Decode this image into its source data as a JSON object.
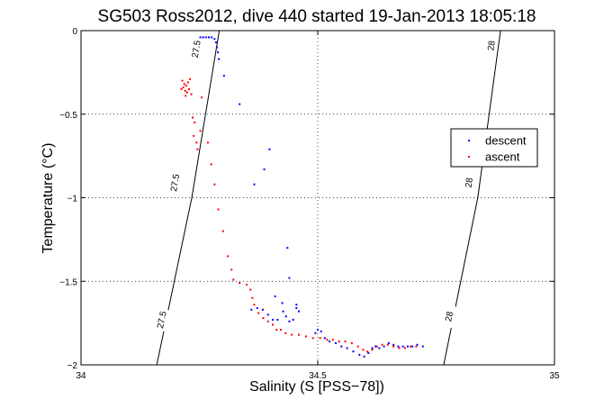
{
  "chart_data": {
    "type": "scatter",
    "title": "SG503 Ross2012, dive 440 started 19-Jan-2013 18:05:18",
    "xlabel": "Salinity (S [PSS−78])",
    "ylabel": "Temperature (°C)",
    "xlim": [
      34,
      35
    ],
    "ylim": [
      -2,
      0
    ],
    "x_ticks": [
      34,
      34.5,
      35
    ],
    "x_tick_labels": [
      "34",
      "34.5",
      "35"
    ],
    "y_ticks": [
      0,
      -0.5,
      -1,
      -1.5,
      -2
    ],
    "y_tick_labels": [
      "0",
      "−0.5",
      "−1",
      "−1.5",
      "−2"
    ],
    "grid": true,
    "legend_position": "right",
    "density_contours": [
      {
        "label": "27.5",
        "points": [
          [
            34.16,
            -2.0
          ],
          [
            34.234,
            -1.0
          ],
          [
            34.292,
            0.0
          ]
        ],
        "label_positions": [
          [
            34.17,
            -1.73
          ],
          [
            34.198,
            -0.91
          ],
          [
            34.243,
            -0.11
          ]
        ]
      },
      {
        "label": "28",
        "points": [
          [
            34.766,
            -2.0
          ],
          [
            34.838,
            -1.0
          ],
          [
            34.886,
            0.0
          ]
        ],
        "label_positions": [
          [
            34.777,
            -1.71
          ],
          [
            34.819,
            -0.91
          ],
          [
            34.866,
            -0.09
          ]
        ]
      }
    ],
    "series": [
      {
        "name": "descent",
        "color": "#0000ff",
        "points": [
          [
            34.252,
            -0.04
          ],
          [
            34.258,
            -0.04
          ],
          [
            34.264,
            -0.04
          ],
          [
            34.27,
            -0.04
          ],
          [
            34.276,
            -0.04
          ],
          [
            34.282,
            -0.05
          ],
          [
            34.285,
            -0.07
          ],
          [
            34.287,
            -0.1
          ],
          [
            34.289,
            -0.13
          ],
          [
            34.291,
            -0.17
          ],
          [
            34.302,
            -0.27
          ],
          [
            34.335,
            -0.44
          ],
          [
            34.366,
            -0.92
          ],
          [
            34.387,
            -0.83
          ],
          [
            34.398,
            -0.71
          ],
          [
            34.436,
            -1.3
          ],
          [
            34.44,
            -1.48
          ],
          [
            34.41,
            -1.59
          ],
          [
            34.425,
            -1.63
          ],
          [
            34.455,
            -1.64
          ],
          [
            34.36,
            -1.67
          ],
          [
            34.372,
            -1.66
          ],
          [
            34.384,
            -1.67
          ],
          [
            34.395,
            -1.7
          ],
          [
            34.405,
            -1.73
          ],
          [
            34.415,
            -1.73
          ],
          [
            34.427,
            -1.68
          ],
          [
            34.433,
            -1.71
          ],
          [
            34.44,
            -1.74
          ],
          [
            34.448,
            -1.73
          ],
          [
            34.455,
            -1.66
          ],
          [
            34.46,
            -1.68
          ],
          [
            34.495,
            -1.81
          ],
          [
            34.5,
            -1.79
          ],
          [
            34.507,
            -1.8
          ],
          [
            34.515,
            -1.84
          ],
          [
            34.525,
            -1.86
          ],
          [
            34.538,
            -1.87
          ],
          [
            34.55,
            -1.89
          ],
          [
            34.562,
            -1.9
          ],
          [
            34.575,
            -1.92
          ],
          [
            34.588,
            -1.94
          ],
          [
            34.598,
            -1.95
          ],
          [
            34.607,
            -1.93
          ],
          [
            34.615,
            -1.9
          ],
          [
            34.622,
            -1.89
          ],
          [
            34.63,
            -1.9
          ],
          [
            34.64,
            -1.89
          ],
          [
            34.65,
            -1.87
          ],
          [
            34.66,
            -1.88
          ],
          [
            34.67,
            -1.89
          ],
          [
            34.68,
            -1.89
          ],
          [
            34.69,
            -1.89
          ],
          [
            34.7,
            -1.89
          ],
          [
            34.71,
            -1.88
          ],
          [
            34.722,
            -1.89
          ]
        ]
      },
      {
        "name": "ascent",
        "color": "#ff0000",
        "points": [
          [
            34.214,
            -0.3
          ],
          [
            34.216,
            -0.34
          ],
          [
            34.218,
            -0.32
          ],
          [
            34.22,
            -0.36
          ],
          [
            34.222,
            -0.33
          ],
          [
            34.224,
            -0.37
          ],
          [
            34.226,
            -0.31
          ],
          [
            34.228,
            -0.35
          ],
          [
            34.221,
            -0.39
          ],
          [
            34.23,
            -0.29
          ],
          [
            34.233,
            -0.38
          ],
          [
            34.212,
            -0.35
          ],
          [
            34.236,
            -0.52
          ],
          [
            34.24,
            -0.55
          ],
          [
            34.238,
            -0.63
          ],
          [
            34.244,
            -0.67
          ],
          [
            34.246,
            -0.71
          ],
          [
            34.252,
            -0.6
          ],
          [
            34.255,
            -0.4
          ],
          [
            34.268,
            -0.67
          ],
          [
            34.275,
            -0.8
          ],
          [
            34.282,
            -0.92
          ],
          [
            34.29,
            -1.07
          ],
          [
            34.3,
            -1.2
          ],
          [
            34.31,
            -1.35
          ],
          [
            34.318,
            -1.43
          ],
          [
            34.322,
            -1.49
          ],
          [
            34.335,
            -1.51
          ],
          [
            34.35,
            -1.52
          ],
          [
            34.358,
            -1.55
          ],
          [
            34.362,
            -1.6
          ],
          [
            34.366,
            -1.64
          ],
          [
            34.375,
            -1.69
          ],
          [
            34.385,
            -1.72
          ],
          [
            34.395,
            -1.74
          ],
          [
            34.405,
            -1.76
          ],
          [
            34.413,
            -1.79
          ],
          [
            34.422,
            -1.79
          ],
          [
            34.432,
            -1.81
          ],
          [
            34.445,
            -1.82
          ],
          [
            34.46,
            -1.82
          ],
          [
            34.475,
            -1.83
          ],
          [
            34.49,
            -1.84
          ],
          [
            34.505,
            -1.84
          ],
          [
            34.52,
            -1.85
          ],
          [
            34.532,
            -1.85
          ],
          [
            34.545,
            -1.86
          ],
          [
            34.558,
            -1.86
          ],
          [
            34.572,
            -1.87
          ],
          [
            34.585,
            -1.89
          ],
          [
            34.596,
            -1.91
          ],
          [
            34.605,
            -1.92
          ],
          [
            34.615,
            -1.91
          ],
          [
            34.625,
            -1.89
          ],
          [
            34.636,
            -1.88
          ],
          [
            34.648,
            -1.88
          ],
          [
            34.66,
            -1.89
          ],
          [
            34.672,
            -1.9
          ],
          [
            34.684,
            -1.9
          ],
          [
            34.696,
            -1.89
          ],
          [
            34.708,
            -1.89
          ]
        ]
      }
    ]
  }
}
